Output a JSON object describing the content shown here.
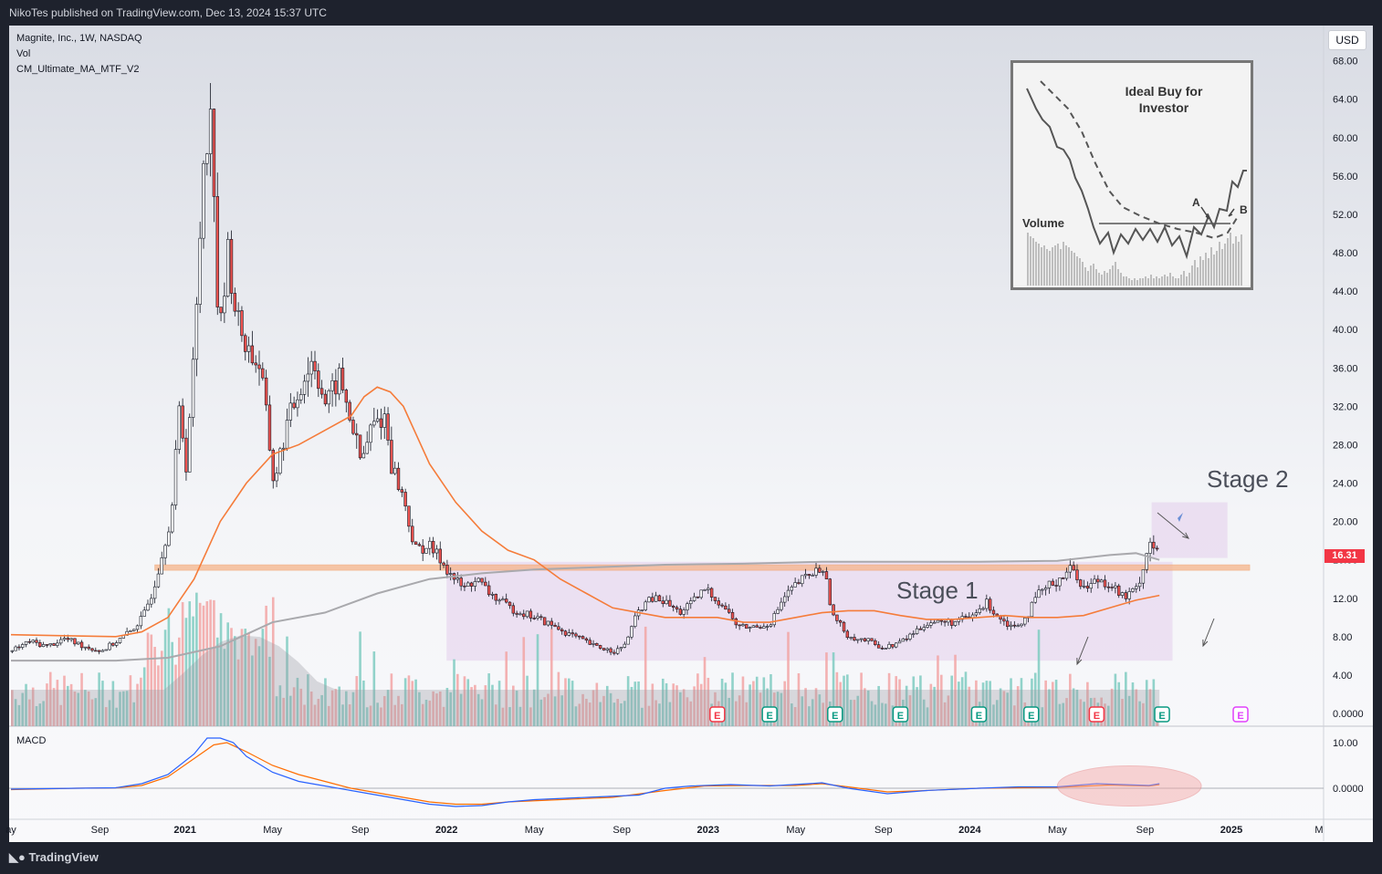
{
  "header": {
    "text": "NikoTes published on TradingView.com, Dec 13, 2024 15:37 UTC"
  },
  "footer": {
    "brand": "TradingView"
  },
  "legend": {
    "symbol": "Magnite, Inc., 1W, NASDAQ",
    "vol": "Vol",
    "indicator": "CM_Ultimate_MA_MTF_V2",
    "macd": "MACD"
  },
  "currency": "USD",
  "last_price": "16.31",
  "annotations": {
    "stage1": "Stage 1",
    "stage2": "Stage 2"
  },
  "inset": {
    "title1": "Ideal Buy for",
    "title2": "Investor",
    "volume": "Volume",
    "a": "A",
    "b": "B"
  },
  "colors": {
    "up": "#26a69a",
    "down": "#ef5350",
    "ma_fast": "#f57c3a",
    "ma_slow": "#a9a9ad",
    "resistance": "#f6b48a",
    "box": "#d9b8e6",
    "macd": "#2962ff",
    "signal": "#ff6d00"
  },
  "chart_data": {
    "type": "candlestick",
    "y_ticks": [
      "68.00",
      "64.00",
      "60.00",
      "56.00",
      "52.00",
      "48.00",
      "44.00",
      "40.00",
      "36.00",
      "32.00",
      "28.00",
      "24.00",
      "20.00",
      "16.00",
      "12.00",
      "8.00",
      "4.00",
      "0.0000"
    ],
    "macd_ticks": [
      "10.00",
      "0.0000"
    ],
    "x_ticks": [
      "ay",
      "Sep",
      "2021",
      "May",
      "Sep",
      "2022",
      "May",
      "Sep",
      "2023",
      "May",
      "Sep",
      "2024",
      "May",
      "Sep",
      "2025",
      "M"
    ],
    "x_tick_pos": [
      0,
      0.068,
      0.133,
      0.2,
      0.267,
      0.333,
      0.4,
      0.467,
      0.533,
      0.6,
      0.667,
      0.733,
      0.8,
      0.867,
      0.933,
      1.0
    ],
    "earnings_markers": [
      {
        "t": 0.54,
        "type": "down"
      },
      {
        "t": 0.58,
        "type": "up"
      },
      {
        "t": 0.63,
        "type": "up"
      },
      {
        "t": 0.68,
        "type": "up"
      },
      {
        "t": 0.74,
        "type": "up"
      },
      {
        "t": 0.78,
        "type": "up"
      },
      {
        "t": 0.83,
        "type": "down"
      },
      {
        "t": 0.88,
        "type": "up"
      },
      {
        "t": 0.94,
        "type": "future"
      }
    ],
    "marker_letter": "E",
    "resistance_level": 15.2,
    "stage1_box": {
      "t0": 0.333,
      "t1": 0.888,
      "y0": 5.5,
      "y1": 15.8
    },
    "stage2_box": {
      "t0": 0.872,
      "t1": 0.93,
      "y0": 16.2,
      "y1": 22.0
    },
    "macd_oval": {
      "t_center": 0.855,
      "half_width": 0.055
    },
    "price_path": [
      [
        0,
        6.5
      ],
      [
        0.013,
        7.5
      ],
      [
        0.027,
        7.0
      ],
      [
        0.04,
        7.8
      ],
      [
        0.055,
        7.0
      ],
      [
        0.068,
        6.5
      ],
      [
        0.08,
        7.5
      ],
      [
        0.09,
        8.5
      ],
      [
        0.1,
        10
      ],
      [
        0.108,
        13
      ],
      [
        0.115,
        17
      ],
      [
        0.122,
        21
      ],
      [
        0.128,
        32
      ],
      [
        0.133,
        26
      ],
      [
        0.14,
        39
      ],
      [
        0.147,
        60
      ],
      [
        0.153,
        62
      ],
      [
        0.158,
        38
      ],
      [
        0.165,
        48
      ],
      [
        0.172,
        41
      ],
      [
        0.18,
        38
      ],
      [
        0.19,
        36
      ],
      [
        0.2,
        24
      ],
      [
        0.21,
        30
      ],
      [
        0.22,
        34
      ],
      [
        0.23,
        37
      ],
      [
        0.24,
        32
      ],
      [
        0.25,
        35
      ],
      [
        0.26,
        30
      ],
      [
        0.267,
        26
      ],
      [
        0.275,
        30
      ],
      [
        0.285,
        31
      ],
      [
        0.29,
        26
      ],
      [
        0.3,
        22
      ],
      [
        0.308,
        17
      ],
      [
        0.318,
        17.5
      ],
      [
        0.328,
        16
      ],
      [
        0.335,
        14.5
      ],
      [
        0.345,
        13
      ],
      [
        0.355,
        14
      ],
      [
        0.365,
        12.5
      ],
      [
        0.38,
        11
      ],
      [
        0.4,
        10
      ],
      [
        0.415,
        9
      ],
      [
        0.43,
        8
      ],
      [
        0.445,
        7
      ],
      [
        0.46,
        6.5
      ],
      [
        0.467,
        6.8
      ],
      [
        0.48,
        11
      ],
      [
        0.49,
        12
      ],
      [
        0.5,
        11.5
      ],
      [
        0.51,
        10.5
      ],
      [
        0.52,
        11.5
      ],
      [
        0.53,
        13
      ],
      [
        0.545,
        11
      ],
      [
        0.555,
        9
      ],
      [
        0.57,
        9
      ],
      [
        0.58,
        9.5
      ],
      [
        0.59,
        12
      ],
      [
        0.6,
        13.5
      ],
      [
        0.61,
        14.5
      ],
      [
        0.62,
        15.2
      ],
      [
        0.628,
        10
      ],
      [
        0.64,
        8
      ],
      [
        0.655,
        7.5
      ],
      [
        0.667,
        6.8
      ],
      [
        0.68,
        7.5
      ],
      [
        0.7,
        9.5
      ],
      [
        0.72,
        9.5
      ],
      [
        0.733,
        10
      ],
      [
        0.745,
        11.5
      ],
      [
        0.755,
        10
      ],
      [
        0.765,
        9
      ],
      [
        0.775,
        10
      ],
      [
        0.785,
        12.5
      ],
      [
        0.8,
        14
      ],
      [
        0.81,
        15.2
      ],
      [
        0.82,
        13
      ],
      [
        0.83,
        14
      ],
      [
        0.84,
        13.5
      ],
      [
        0.85,
        12
      ],
      [
        0.86,
        13
      ],
      [
        0.87,
        18
      ],
      [
        0.875,
        17
      ],
      [
        0.878,
        16.3
      ]
    ],
    "ma_fast_path": [
      [
        0,
        8.2
      ],
      [
        0.04,
        8.1
      ],
      [
        0.08,
        8
      ],
      [
        0.1,
        8.5
      ],
      [
        0.12,
        10
      ],
      [
        0.14,
        14
      ],
      [
        0.16,
        20
      ],
      [
        0.18,
        24
      ],
      [
        0.2,
        27
      ],
      [
        0.22,
        28
      ],
      [
        0.24,
        29.5
      ],
      [
        0.26,
        31
      ],
      [
        0.27,
        33
      ],
      [
        0.28,
        34
      ],
      [
        0.29,
        33.5
      ],
      [
        0.3,
        32
      ],
      [
        0.31,
        29
      ],
      [
        0.32,
        26
      ],
      [
        0.34,
        22
      ],
      [
        0.36,
        19
      ],
      [
        0.38,
        17
      ],
      [
        0.4,
        16
      ],
      [
        0.42,
        14
      ],
      [
        0.44,
        12.5
      ],
      [
        0.46,
        11
      ],
      [
        0.48,
        10.5
      ],
      [
        0.5,
        10
      ],
      [
        0.52,
        10
      ],
      [
        0.54,
        10
      ],
      [
        0.56,
        9.5
      ],
      [
        0.58,
        9.5
      ],
      [
        0.6,
        10
      ],
      [
        0.62,
        10.5
      ],
      [
        0.64,
        10.7
      ],
      [
        0.66,
        10.7
      ],
      [
        0.68,
        10.2
      ],
      [
        0.7,
        9.8
      ],
      [
        0.72,
        9.8
      ],
      [
        0.74,
        10
      ],
      [
        0.76,
        10.2
      ],
      [
        0.78,
        10
      ],
      [
        0.8,
        10
      ],
      [
        0.82,
        10.2
      ],
      [
        0.84,
        11
      ],
      [
        0.86,
        11.8
      ],
      [
        0.878,
        12.3
      ]
    ],
    "ma_slow_path": [
      [
        0,
        5.5
      ],
      [
        0.08,
        5.5
      ],
      [
        0.12,
        5.8
      ],
      [
        0.16,
        7.0
      ],
      [
        0.2,
        9.5
      ],
      [
        0.24,
        10.5
      ],
      [
        0.28,
        12.5
      ],
      [
        0.32,
        14
      ],
      [
        0.36,
        14.6
      ],
      [
        0.4,
        15
      ],
      [
        0.44,
        15.2
      ],
      [
        0.5,
        15.5
      ],
      [
        0.56,
        15.6
      ],
      [
        0.62,
        15.8
      ],
      [
        0.68,
        15.8
      ],
      [
        0.74,
        15.8
      ],
      [
        0.8,
        15.9
      ],
      [
        0.84,
        16.5
      ],
      [
        0.86,
        16.7
      ],
      [
        0.878,
        16.0
      ]
    ],
    "macd_path": [
      [
        0,
        -0.2
      ],
      [
        0.05,
        0
      ],
      [
        0.08,
        0.1
      ],
      [
        0.1,
        1.0
      ],
      [
        0.12,
        3.0
      ],
      [
        0.14,
        7.5
      ],
      [
        0.15,
        11
      ],
      [
        0.16,
        11
      ],
      [
        0.17,
        10
      ],
      [
        0.18,
        7
      ],
      [
        0.2,
        3.5
      ],
      [
        0.22,
        1.5
      ],
      [
        0.24,
        0.5
      ],
      [
        0.26,
        -0.5
      ],
      [
        0.28,
        -1.5
      ],
      [
        0.3,
        -2.5
      ],
      [
        0.32,
        -3.5
      ],
      [
        0.34,
        -4
      ],
      [
        0.36,
        -3.8
      ],
      [
        0.38,
        -3
      ],
      [
        0.4,
        -2.5
      ],
      [
        0.44,
        -2
      ],
      [
        0.48,
        -1.5
      ],
      [
        0.5,
        0
      ],
      [
        0.52,
        0.5
      ],
      [
        0.55,
        0.8
      ],
      [
        0.58,
        0.5
      ],
      [
        0.61,
        1.0
      ],
      [
        0.62,
        1.2
      ],
      [
        0.64,
        0
      ],
      [
        0.67,
        -1.2
      ],
      [
        0.7,
        -0.5
      ],
      [
        0.74,
        0
      ],
      [
        0.77,
        0.3
      ],
      [
        0.8,
        0.3
      ],
      [
        0.83,
        1.0
      ],
      [
        0.85,
        0.8
      ],
      [
        0.87,
        0.6
      ],
      [
        0.878,
        1.0
      ]
    ],
    "signal_path": [
      [
        0,
        -0.3
      ],
      [
        0.05,
        0
      ],
      [
        0.08,
        0.1
      ],
      [
        0.1,
        0.6
      ],
      [
        0.12,
        2.5
      ],
      [
        0.14,
        6.5
      ],
      [
        0.155,
        9.5
      ],
      [
        0.165,
        10
      ],
      [
        0.18,
        8
      ],
      [
        0.2,
        5
      ],
      [
        0.22,
        3
      ],
      [
        0.24,
        1.5
      ],
      [
        0.26,
        0
      ],
      [
        0.28,
        -1
      ],
      [
        0.3,
        -2
      ],
      [
        0.32,
        -3
      ],
      [
        0.34,
        -3.5
      ],
      [
        0.36,
        -3.5
      ],
      [
        0.38,
        -3
      ],
      [
        0.42,
        -2.5
      ],
      [
        0.46,
        -2
      ],
      [
        0.5,
        -0.5
      ],
      [
        0.53,
        0.5
      ],
      [
        0.56,
        0.6
      ],
      [
        0.6,
        0.6
      ],
      [
        0.62,
        1
      ],
      [
        0.64,
        0.3
      ],
      [
        0.67,
        -0.8
      ],
      [
        0.7,
        -0.5
      ],
      [
        0.74,
        0
      ],
      [
        0.8,
        0.2
      ],
      [
        0.84,
        0.7
      ],
      [
        0.87,
        0.5
      ],
      [
        0.878,
        0.8
      ]
    ]
  }
}
